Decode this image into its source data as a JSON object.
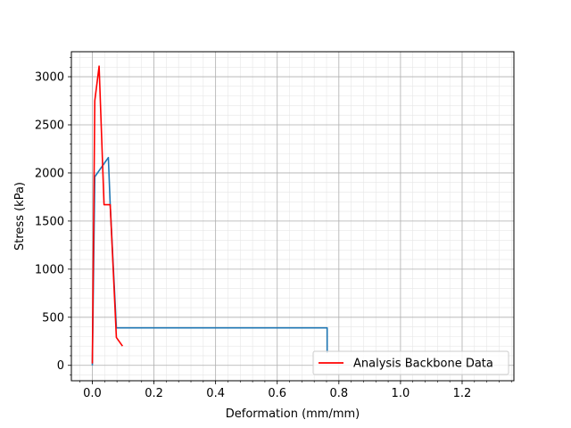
{
  "chart_data": {
    "type": "line",
    "title": "",
    "xlabel": "Deformation (mm/mm)",
    "ylabel": "Stress (kPa)",
    "xlim": [
      -0.068,
      1.368
    ],
    "ylim": [
      -160,
      3260
    ],
    "xticks": [
      0.0,
      0.2,
      0.4,
      0.6,
      0.8,
      1.0,
      1.2
    ],
    "xtick_labels": [
      "0.0",
      "0.2",
      "0.4",
      "0.6",
      "0.8",
      "1.0",
      "1.2"
    ],
    "yticks": [
      0,
      500,
      1000,
      1500,
      2000,
      2500,
      3000
    ],
    "ytick_labels": [
      "0",
      "500",
      "1000",
      "1500",
      "2000",
      "2500",
      "3000"
    ],
    "grid": true,
    "minor_grid": true,
    "legend_position": "lower-right",
    "series": [
      {
        "name": "",
        "color": "#1f77b4",
        "points": [
          [
            0.0,
            0
          ],
          [
            0.008,
            1960
          ],
          [
            0.052,
            2160
          ],
          [
            0.058,
            1670
          ],
          [
            0.078,
            390
          ],
          [
            0.762,
            390
          ],
          [
            0.762,
            130
          ]
        ]
      },
      {
        "name": "Analysis Backbone Data",
        "color": "#ff0000",
        "points": [
          [
            0.0,
            20
          ],
          [
            0.008,
            2750
          ],
          [
            0.022,
            3110
          ],
          [
            0.038,
            1670
          ],
          [
            0.058,
            1670
          ],
          [
            0.078,
            290
          ],
          [
            0.098,
            200
          ]
        ]
      }
    ]
  }
}
